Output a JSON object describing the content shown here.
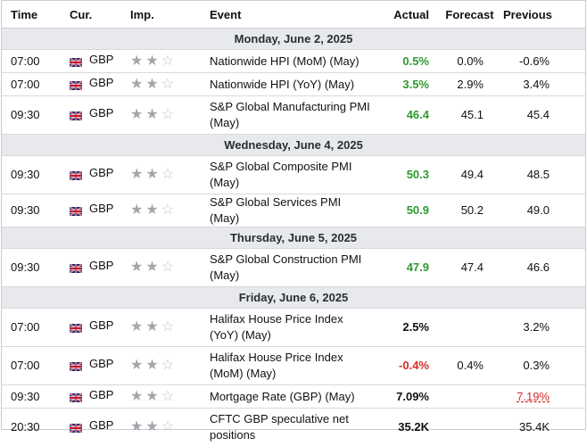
{
  "headers": {
    "time": "Time",
    "currency": "Cur.",
    "importance": "Imp.",
    "event": "Event",
    "actual": "Actual",
    "forecast": "Forecast",
    "previous": "Previous"
  },
  "days": [
    "Monday, June 2, 2025",
    "Wednesday, June 4, 2025",
    "Thursday, June 5, 2025",
    "Friday, June 6, 2025"
  ],
  "events": [
    {
      "time": "07:00",
      "currency": "GBP",
      "importance": 2,
      "event": "Nationwide HPI (MoM) (May)",
      "actual": "0.5%",
      "actual_status": "pos",
      "forecast": "0.0%",
      "previous": "-0.6%"
    },
    {
      "time": "07:00",
      "currency": "GBP",
      "importance": 2,
      "event": "Nationwide HPI (YoY) (May)",
      "actual": "3.5%",
      "actual_status": "pos",
      "forecast": "2.9%",
      "previous": "3.4%"
    },
    {
      "time": "09:30",
      "currency": "GBP",
      "importance": 2,
      "event": "S&P Global Manufacturing PMI (May)",
      "actual": "46.4",
      "actual_status": "pos",
      "forecast": "45.1",
      "previous": "45.4"
    },
    {
      "time": "09:30",
      "currency": "GBP",
      "importance": 2,
      "event": "S&P Global Composite PMI (May)",
      "actual": "50.3",
      "actual_status": "pos",
      "forecast": "49.4",
      "previous": "48.5"
    },
    {
      "time": "09:30",
      "currency": "GBP",
      "importance": 2,
      "event": "S&P Global Services PMI (May)",
      "actual": "50.9",
      "actual_status": "pos",
      "forecast": "50.2",
      "previous": "49.0"
    },
    {
      "time": "09:30",
      "currency": "GBP",
      "importance": 2,
      "event": "S&P Global Construction PMI (May)",
      "actual": "47.9",
      "actual_status": "pos",
      "forecast": "47.4",
      "previous": "46.6"
    },
    {
      "time": "07:00",
      "currency": "GBP",
      "importance": 2,
      "event": "Halifax House Price Index (YoY) (May)",
      "actual": "2.5%",
      "actual_status": "neu",
      "forecast": "",
      "previous": "3.2%"
    },
    {
      "time": "07:00",
      "currency": "GBP",
      "importance": 2,
      "event": "Halifax House Price Index (MoM) (May)",
      "actual": "-0.4%",
      "actual_status": "neg",
      "forecast": "0.4%",
      "previous": "0.3%"
    },
    {
      "time": "09:30",
      "currency": "GBP",
      "importance": 2,
      "event": "Mortgage Rate (GBP) (May)",
      "actual": "7.09%",
      "actual_status": "neu",
      "forecast": "",
      "previous": "7.19%",
      "previous_revised": true
    },
    {
      "time": "20:30",
      "currency": "GBP",
      "importance": 2,
      "event": "CFTC GBP speculative net positions",
      "actual": "35.2K",
      "actual_status": "neu",
      "forecast": "",
      "previous": "35.4K"
    }
  ],
  "colors": {
    "positive": "#2e9a2e",
    "negative": "#d62a2a",
    "day_header_bg": "#e7e9ec",
    "star_on": "#a3a6ab",
    "star_off": "#c2c5ca"
  },
  "icons": {
    "currency_flag": "uk-flag-icon",
    "importance": "star-icon"
  }
}
